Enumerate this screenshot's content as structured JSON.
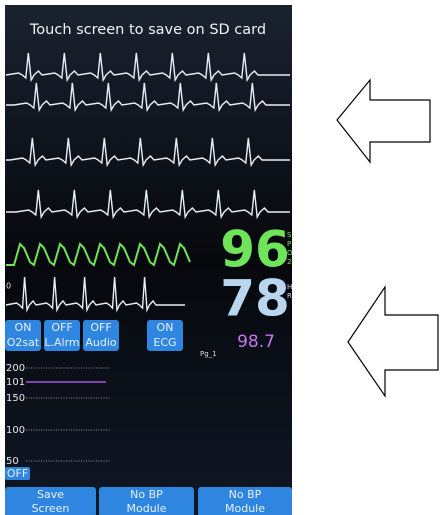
{
  "header": {
    "title": "Touch screen to save on SD card"
  },
  "vitals": {
    "spo2": {
      "value": "96",
      "letters": [
        "S",
        "P",
        "O",
        "2"
      ]
    },
    "hr": {
      "value": "78",
      "letters": [
        "H",
        "R"
      ]
    },
    "temp": {
      "value": "98.7"
    },
    "zero": "0"
  },
  "buttons": [
    {
      "state": "ON",
      "label": "O2sat"
    },
    {
      "state": "OFF",
      "label": "L.Alrm"
    },
    {
      "state": "OFF",
      "label": "Audio"
    },
    {
      "state": "ON",
      "label": "ECG"
    }
  ],
  "page_label": "Pg_1",
  "trend_labels": [
    "200",
    "101",
    "150",
    "100",
    "50"
  ],
  "trend_off": "OFF",
  "footer_buttons": [
    {
      "lines": [
        "Save",
        "Screen"
      ]
    },
    {
      "lines": [
        "No BP",
        "Module"
      ]
    },
    {
      "lines": [
        "No BP",
        "Module"
      ]
    }
  ]
}
